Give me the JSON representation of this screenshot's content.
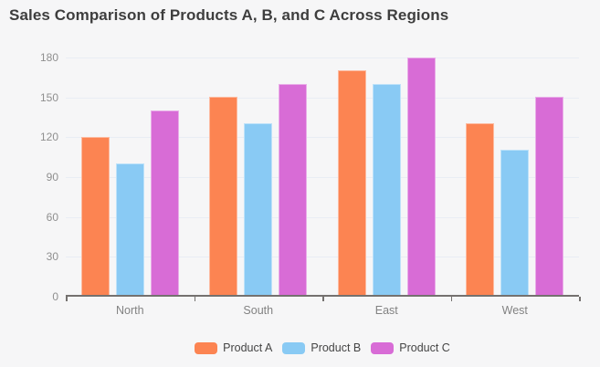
{
  "title": "Sales Comparison of Products A, B, and C Across Regions",
  "chart_data": {
    "type": "bar",
    "title": "Sales Comparison of Products A, B, and C Across Regions",
    "categories": [
      "North",
      "South",
      "East",
      "West"
    ],
    "series": [
      {
        "name": "Product A",
        "color": "#fc8452",
        "values": [
          120,
          150,
          170,
          130
        ]
      },
      {
        "name": "Product B",
        "color": "#89caf4",
        "values": [
          100,
          130,
          160,
          110
        ]
      },
      {
        "name": "Product C",
        "color": "#d86cd6",
        "values": [
          140,
          160,
          180,
          150
        ]
      }
    ],
    "xlabel": "",
    "ylabel": "",
    "ylim": [
      0,
      180
    ],
    "yticks": [
      0,
      30,
      60,
      90,
      120,
      150,
      180
    ],
    "grid": true,
    "legend_position": "bottom"
  },
  "colors": {
    "background": "#f6f6f7",
    "grid": "#e9edf4",
    "axis": "#74716f",
    "title_text": "#3e3e3e",
    "ytick_text": "#8f8f8f",
    "xtick_text": "#828282",
    "legend_text": "#454545"
  }
}
